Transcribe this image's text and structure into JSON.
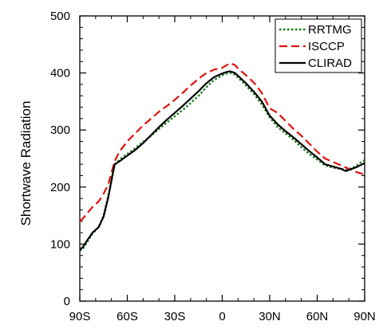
{
  "chart_data": {
    "type": "line",
    "ylabel": "Shortwave Radiation",
    "xlim": [
      -90,
      90
    ],
    "ylim": [
      0,
      500
    ],
    "x_ticks": [
      {
        "value": -90,
        "label": "90S"
      },
      {
        "value": -60,
        "label": "60S"
      },
      {
        "value": -30,
        "label": "30S"
      },
      {
        "value": 0,
        "label": "0"
      },
      {
        "value": 30,
        "label": "30N"
      },
      {
        "value": 60,
        "label": "60N"
      },
      {
        "value": 90,
        "label": "90N"
      }
    ],
    "y_ticks": [
      0,
      100,
      200,
      300,
      400,
      500
    ],
    "grid": false,
    "legend_position": "top-right",
    "series": [
      {
        "name": "RRTMG",
        "color": "#1f7a1f",
        "style": "dotted",
        "x": [
          -90,
          -88,
          -85,
          -82,
          -78,
          -75,
          -72,
          -70,
          -68,
          -65,
          -60,
          -55,
          -50,
          -45,
          -40,
          -35,
          -30,
          -25,
          -20,
          -15,
          -10,
          -5,
          0,
          3,
          5,
          8,
          10,
          15,
          20,
          25,
          30,
          35,
          40,
          45,
          50,
          55,
          60,
          65,
          70,
          75,
          78,
          82,
          85,
          88,
          90
        ],
        "values": [
          88,
          92,
          105,
          118,
          130,
          150,
          185,
          210,
          238,
          248,
          258,
          268,
          279,
          290,
          302,
          313,
          324,
          335,
          347,
          360,
          375,
          388,
          396,
          399,
          400,
          397,
          392,
          378,
          363,
          345,
          322,
          305,
          294,
          283,
          270,
          258,
          248,
          238,
          234,
          232,
          230,
          233,
          238,
          244,
          247
        ]
      },
      {
        "name": "ISCCP",
        "color": "#e3110f",
        "style": "dashed",
        "x": [
          -90,
          -88,
          -85,
          -82,
          -78,
          -75,
          -72,
          -70,
          -68,
          -65,
          -60,
          -55,
          -50,
          -45,
          -40,
          -35,
          -30,
          -25,
          -20,
          -15,
          -10,
          -5,
          0,
          3,
          5,
          8,
          10,
          15,
          20,
          25,
          30,
          35,
          40,
          45,
          50,
          55,
          60,
          65,
          70,
          75,
          80,
          85,
          90
        ],
        "values": [
          140,
          145,
          155,
          165,
          175,
          188,
          205,
          225,
          245,
          262,
          280,
          294,
          308,
          320,
          332,
          342,
          353,
          365,
          378,
          390,
          400,
          406,
          409,
          414,
          417,
          414,
          408,
          396,
          383,
          365,
          338,
          330,
          316,
          302,
          290,
          276,
          262,
          250,
          244,
          238,
          232,
          226,
          222
        ]
      },
      {
        "name": "CLIRAD",
        "color": "#000000",
        "style": "solid",
        "x": [
          -90,
          -88,
          -85,
          -82,
          -78,
          -75,
          -72,
          -70,
          -68,
          -65,
          -60,
          -55,
          -50,
          -45,
          -40,
          -35,
          -30,
          -25,
          -20,
          -15,
          -10,
          -5,
          0,
          3,
          5,
          8,
          10,
          15,
          20,
          25,
          30,
          35,
          40,
          45,
          50,
          55,
          60,
          65,
          70,
          75,
          78,
          80,
          82,
          85,
          90
        ],
        "values": [
          90,
          95,
          108,
          120,
          130,
          148,
          182,
          212,
          240,
          245,
          255,
          265,
          277,
          291,
          305,
          318,
          330,
          342,
          355,
          368,
          382,
          393,
          399,
          402,
          403,
          400,
          395,
          382,
          367,
          350,
          325,
          310,
          298,
          287,
          275,
          263,
          252,
          240,
          236,
          232,
          228,
          230,
          232,
          235,
          242
        ]
      }
    ]
  }
}
